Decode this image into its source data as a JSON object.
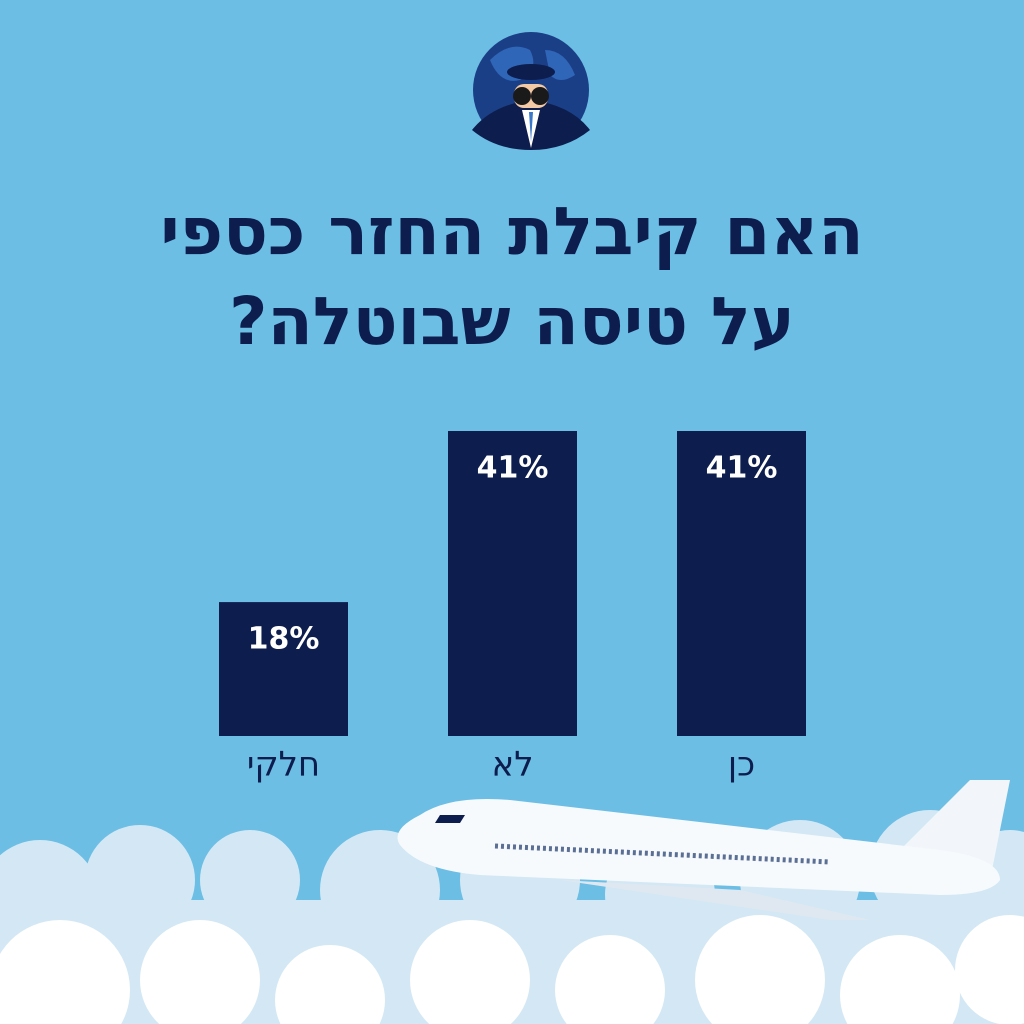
{
  "chart_data": {
    "type": "bar",
    "title": [
      "האם קיבלת החזר כספי",
      "על טיסה שבוטלה?"
    ],
    "categories": [
      "כן",
      "לא",
      "חלקי"
    ],
    "values": [
      41,
      41,
      18
    ],
    "value_labels": [
      "41%",
      "41%",
      "18%"
    ],
    "color": "#0d1d4d"
  }
}
